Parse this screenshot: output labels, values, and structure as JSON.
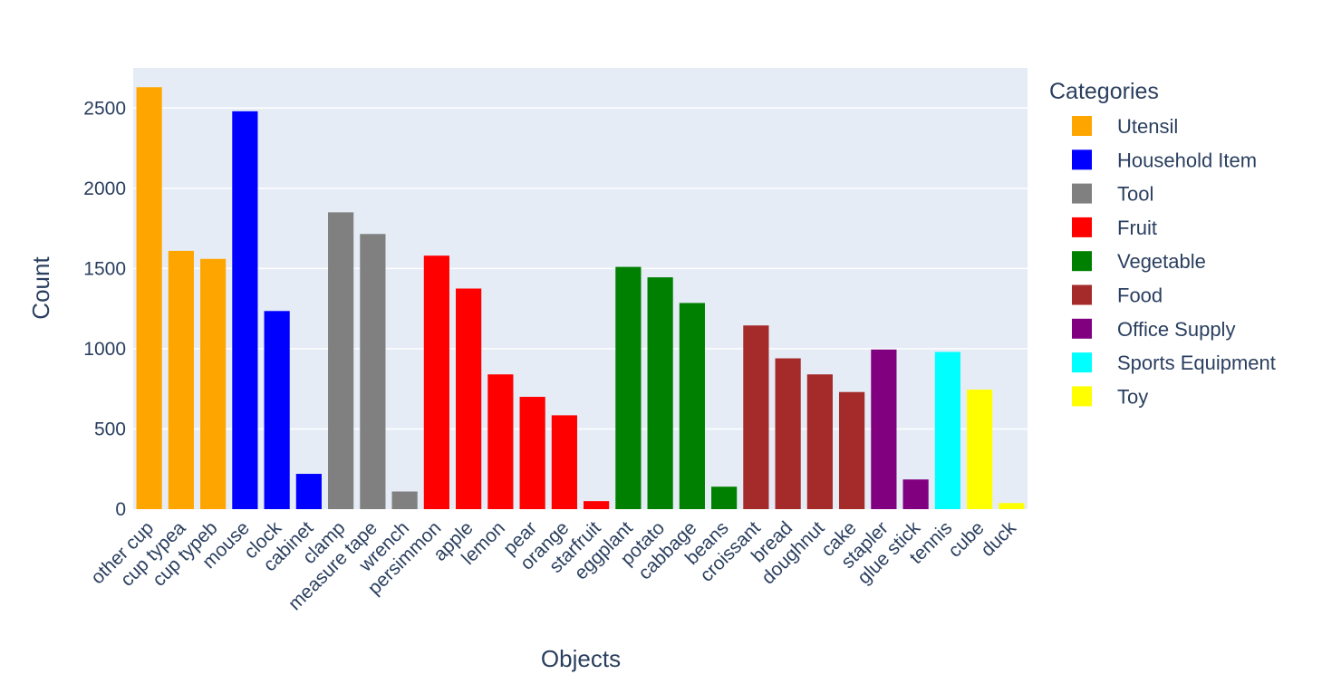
{
  "chart_data": {
    "type": "bar",
    "xlabel": "Objects",
    "ylabel": "Count",
    "ylim": [
      0,
      2750
    ],
    "yticks": [
      0,
      500,
      1000,
      1500,
      2000,
      2500
    ],
    "grid": true,
    "legend": {
      "title": "Categories",
      "placement": "right",
      "entries": [
        {
          "name": "Utensil",
          "color": "#ffa500"
        },
        {
          "name": "Household Item",
          "color": "#0000ff"
        },
        {
          "name": "Tool",
          "color": "#808080"
        },
        {
          "name": "Fruit",
          "color": "#ff0000"
        },
        {
          "name": "Vegetable",
          "color": "#008000"
        },
        {
          "name": "Food",
          "color": "#a52a2a"
        },
        {
          "name": "Office Supply",
          "color": "#800080"
        },
        {
          "name": "Sports Equipment",
          "color": "#00ffff"
        },
        {
          "name": "Toy",
          "color": "#ffff00"
        }
      ]
    },
    "bars": [
      {
        "category": "other cup",
        "value": 2630,
        "group": "Utensil"
      },
      {
        "category": "cup typea",
        "value": 1610,
        "group": "Utensil"
      },
      {
        "category": "cup typeb",
        "value": 1560,
        "group": "Utensil"
      },
      {
        "category": "mouse",
        "value": 2480,
        "group": "Household Item"
      },
      {
        "category": "clock",
        "value": 1235,
        "group": "Household Item"
      },
      {
        "category": "cabinet",
        "value": 220,
        "group": "Household Item"
      },
      {
        "category": "clamp",
        "value": 1850,
        "group": "Tool"
      },
      {
        "category": "measure tape",
        "value": 1715,
        "group": "Tool"
      },
      {
        "category": "wrench",
        "value": 110,
        "group": "Tool"
      },
      {
        "category": "persimmon",
        "value": 1580,
        "group": "Fruit"
      },
      {
        "category": "apple",
        "value": 1375,
        "group": "Fruit"
      },
      {
        "category": "lemon",
        "value": 840,
        "group": "Fruit"
      },
      {
        "category": "pear",
        "value": 700,
        "group": "Fruit"
      },
      {
        "category": "orange",
        "value": 585,
        "group": "Fruit"
      },
      {
        "category": "starfruit",
        "value": 50,
        "group": "Fruit"
      },
      {
        "category": "eggplant",
        "value": 1510,
        "group": "Vegetable"
      },
      {
        "category": "potato",
        "value": 1445,
        "group": "Vegetable"
      },
      {
        "category": "cabbage",
        "value": 1285,
        "group": "Vegetable"
      },
      {
        "category": "beans",
        "value": 140,
        "group": "Vegetable"
      },
      {
        "category": "croissant",
        "value": 1145,
        "group": "Food"
      },
      {
        "category": "bread",
        "value": 940,
        "group": "Food"
      },
      {
        "category": "doughnut",
        "value": 840,
        "group": "Food"
      },
      {
        "category": "cake",
        "value": 730,
        "group": "Food"
      },
      {
        "category": "stapler",
        "value": 995,
        "group": "Office Supply"
      },
      {
        "category": "glue stick",
        "value": 185,
        "group": "Office Supply"
      },
      {
        "category": "tennis",
        "value": 980,
        "group": "Sports Equipment"
      },
      {
        "category": "cube",
        "value": 745,
        "group": "Toy"
      },
      {
        "category": "duck",
        "value": 38,
        "group": "Toy"
      }
    ]
  }
}
